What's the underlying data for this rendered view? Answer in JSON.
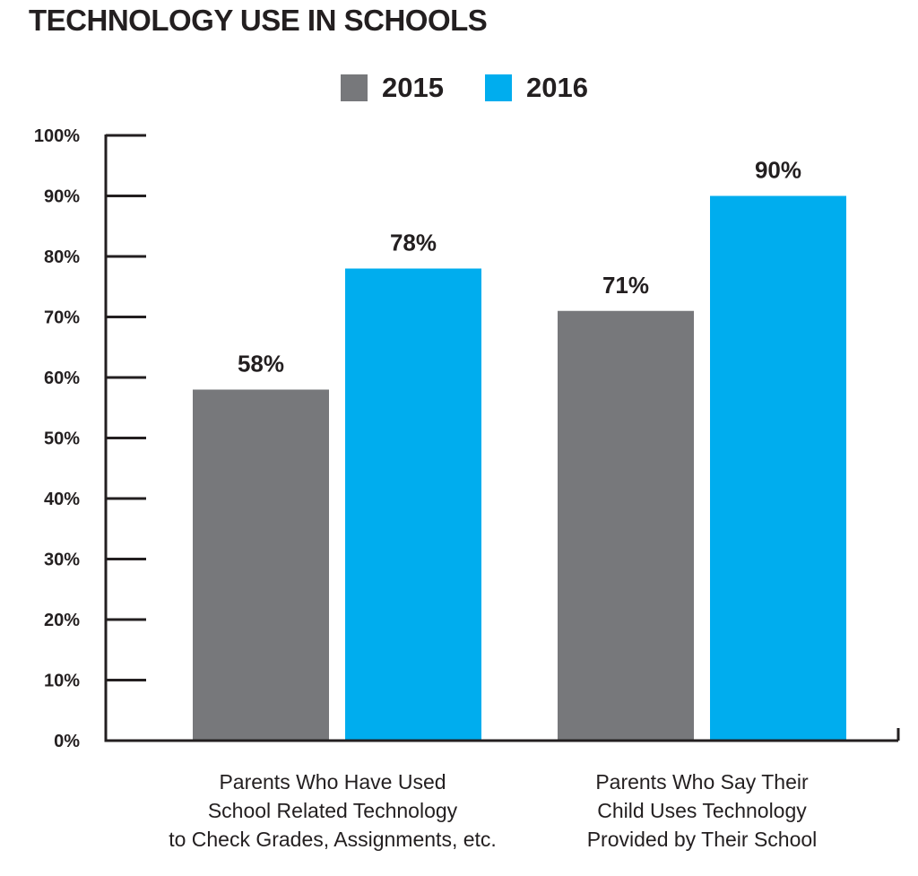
{
  "chart_data": {
    "type": "bar",
    "title": "TECHNOLOGY USE IN SCHOOLS",
    "categories": [
      [
        "Parents Who Have Used",
        "School Related Technology",
        "to Check Grades, Assignments, etc."
      ],
      [
        "Parents Who Say Their",
        "Child Uses Technology",
        "Provided by Their School"
      ]
    ],
    "series": [
      {
        "name": "2015",
        "color": "#77787b",
        "values": [
          58,
          71
        ]
      },
      {
        "name": "2016",
        "color": "#00adee",
        "values": [
          78,
          90
        ]
      }
    ],
    "ylim": [
      0,
      100
    ],
    "yticks": [
      0,
      10,
      20,
      30,
      40,
      50,
      60,
      70,
      80,
      90,
      100
    ],
    "ytick_labels": [
      "0%",
      "10%",
      "20%",
      "30%",
      "40%",
      "50%",
      "60%",
      "70%",
      "80%",
      "90%",
      "100%"
    ],
    "value_labels": [
      [
        "58%",
        "71%"
      ],
      [
        "78%",
        "90%"
      ]
    ],
    "grid": false,
    "legend_position": "top-center"
  }
}
